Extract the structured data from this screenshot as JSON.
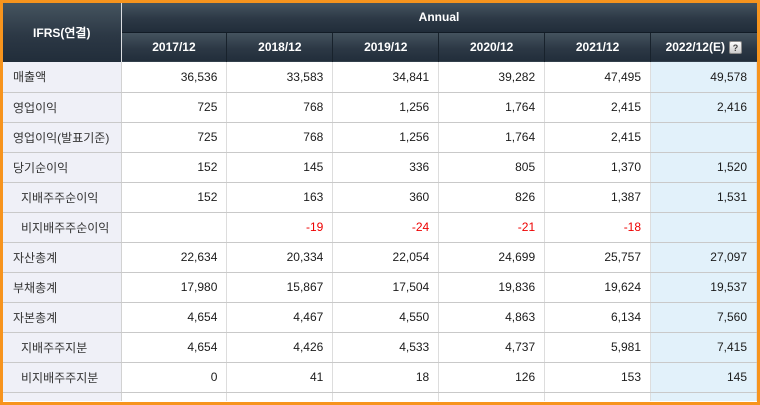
{
  "table": {
    "corner_label": "IFRS(연결)",
    "group_header": "Annual",
    "help_icon_glyph": "?",
    "columns": [
      "2017/12",
      "2018/12",
      "2019/12",
      "2020/12",
      "2021/12",
      "2022/12(E)"
    ],
    "rows": [
      {
        "label": "매출액",
        "indent": false,
        "values": [
          "36,536",
          "33,583",
          "34,841",
          "39,282",
          "47,495",
          "49,578"
        ]
      },
      {
        "label": "영업이익",
        "indent": false,
        "values": [
          "725",
          "768",
          "1,256",
          "1,764",
          "2,415",
          "2,416"
        ]
      },
      {
        "label": "영업이익(발표기준)",
        "indent": false,
        "values": [
          "725",
          "768",
          "1,256",
          "1,764",
          "2,415",
          ""
        ]
      },
      {
        "label": "당기순이익",
        "indent": false,
        "values": [
          "152",
          "145",
          "336",
          "805",
          "1,370",
          "1,520"
        ]
      },
      {
        "label": "지배주주순이익",
        "indent": true,
        "values": [
          "152",
          "163",
          "360",
          "826",
          "1,387",
          "1,531"
        ]
      },
      {
        "label": "비지배주주순이익",
        "indent": true,
        "values": [
          "",
          "-19",
          "-24",
          "-21",
          "-18",
          ""
        ]
      },
      {
        "label": "자산총계",
        "indent": false,
        "values": [
          "22,634",
          "20,334",
          "22,054",
          "24,699",
          "25,757",
          "27,097"
        ]
      },
      {
        "label": "부채총계",
        "indent": false,
        "values": [
          "17,980",
          "15,867",
          "17,504",
          "19,836",
          "19,624",
          "19,537"
        ]
      },
      {
        "label": "자본총계",
        "indent": false,
        "values": [
          "4,654",
          "4,467",
          "4,550",
          "4,863",
          "6,134",
          "7,560"
        ]
      },
      {
        "label": "지배주주지분",
        "indent": true,
        "values": [
          "4,654",
          "4,426",
          "4,533",
          "4,737",
          "5,981",
          "7,415"
        ]
      },
      {
        "label": "비지배주주지분",
        "indent": true,
        "values": [
          "0",
          "41",
          "18",
          "126",
          "153",
          "145"
        ]
      }
    ],
    "colors": {
      "frame": "#f7941d",
      "header_gradient_top": "#45545f",
      "header_gradient_bottom": "#212d3a",
      "header_text": "#ffffff",
      "label_cell_bg": "#eff0f7",
      "estimate_col_bg": "#e2f1fa",
      "negative_value": "#ee0000",
      "grid_line": "#c9c9c9"
    }
  }
}
